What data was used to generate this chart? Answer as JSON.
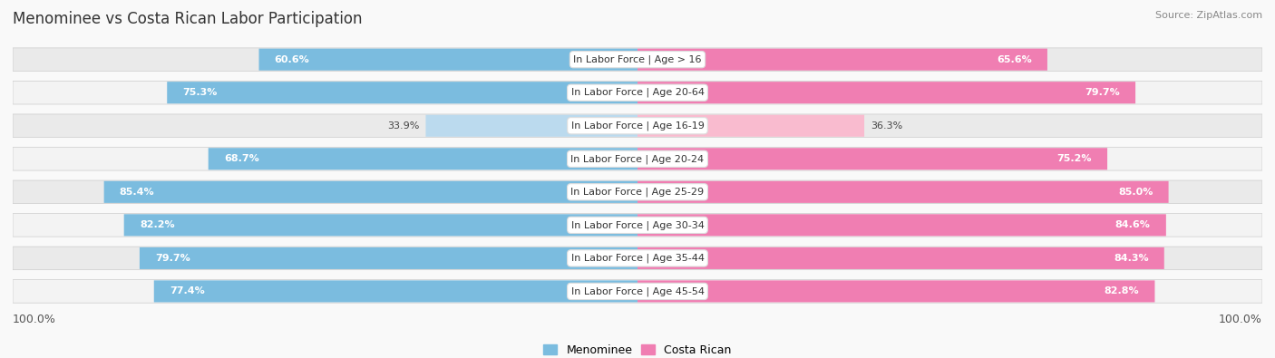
{
  "title": "Menominee vs Costa Rican Labor Participation",
  "source": "Source: ZipAtlas.com",
  "categories": [
    "In Labor Force | Age > 16",
    "In Labor Force | Age 20-64",
    "In Labor Force | Age 16-19",
    "In Labor Force | Age 20-24",
    "In Labor Force | Age 25-29",
    "In Labor Force | Age 30-34",
    "In Labor Force | Age 35-44",
    "In Labor Force | Age 45-54"
  ],
  "menominee_values": [
    60.6,
    75.3,
    33.9,
    68.7,
    85.4,
    82.2,
    79.7,
    77.4
  ],
  "costa_rican_values": [
    65.6,
    79.7,
    36.3,
    75.2,
    85.0,
    84.6,
    84.3,
    82.8
  ],
  "menominee_color": "#7BBCDF",
  "costa_rican_color": "#F07EB2",
  "menominee_light_color": "#BBDAEE",
  "costa_rican_light_color": "#F9BBCF",
  "row_bg_color_odd": "#EAEAEA",
  "row_bg_color_even": "#F3F3F3",
  "background_color": "#F9F9F9",
  "legend_menominee": "Menominee",
  "legend_costa_rican": "Costa Rican",
  "max_value": 100.0,
  "title_fontsize": 12,
  "value_fontsize": 8,
  "source_fontsize": 8,
  "cat_label_fontsize": 8,
  "axis_label_fontsize": 9
}
